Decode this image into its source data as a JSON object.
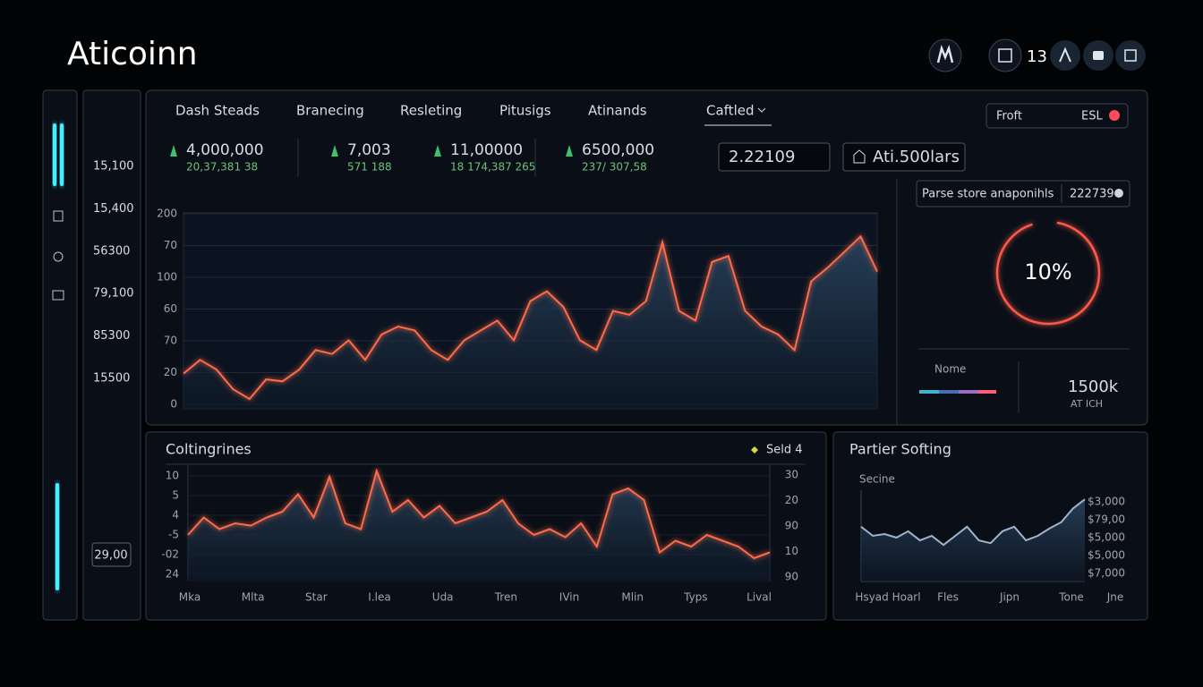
{
  "header": {
    "title": "Aticoinn",
    "badge": "13"
  },
  "sidebar": {
    "values": [
      "15,100",
      "15,400",
      "56300",
      "79,100",
      "85300",
      "15500"
    ],
    "footer": "29,00"
  },
  "tabs": [
    "Dash Steads",
    "Branecing",
    "Resleting",
    "Pitusigs",
    "Atinands",
    "Caftled"
  ],
  "filter": {
    "label": "Froft",
    "value": "ESL"
  },
  "stats": [
    {
      "value": "4,000,000",
      "sub": "20,37,381 38"
    },
    {
      "value": "7,003",
      "sub": "571 188"
    },
    {
      "value": "11,00000",
      "sub": "18 174,387 265"
    },
    {
      "value": "6500,000",
      "sub": "237/ 307,58"
    }
  ],
  "input": "2.22109",
  "button": "Ati.500lars",
  "main_chart": {
    "type": "line",
    "y_labels": [
      "200",
      "70",
      "100",
      "60",
      "70",
      "20",
      "0"
    ],
    "values": [
      18,
      25,
      20,
      10,
      5,
      15,
      14,
      20,
      30,
      28,
      35,
      25,
      38,
      42,
      40,
      30,
      25,
      35,
      40,
      45,
      35,
      55,
      60,
      52,
      35,
      30,
      50,
      48,
      55,
      85,
      50,
      45,
      75,
      78,
      50,
      42,
      38,
      30,
      65,
      72,
      80,
      88,
      70
    ],
    "ylim": [
      0,
      100
    ],
    "color": "#ff6a4a"
  },
  "side_panel": {
    "field": "Parse store anaponihls",
    "field_value": "222739",
    "ring_label": "10%",
    "legend": "Nome",
    "total": "1500k",
    "total_sub": "AT ICH"
  },
  "lower_chart": {
    "type": "line",
    "title": "Coltingrines",
    "legend": "Seld 4",
    "y_labels": [
      "10",
      "5",
      "4",
      "-5",
      "-02",
      "24"
    ],
    "y2_labels": [
      "30",
      "20",
      "90",
      "10",
      "90"
    ],
    "x_labels": [
      "Mka",
      "Mlta",
      "Star",
      "I.lea",
      "Uda",
      "Tren",
      "IVin",
      "Mlin",
      "Typs",
      "Lival"
    ],
    "values": [
      40,
      55,
      45,
      50,
      48,
      55,
      60,
      75,
      55,
      90,
      50,
      45,
      95,
      60,
      70,
      55,
      65,
      50,
      55,
      60,
      70,
      50,
      40,
      45,
      38,
      50,
      30,
      75,
      80,
      70,
      25,
      35,
      30,
      40,
      35,
      30,
      20,
      25
    ],
    "ylim": [
      0,
      100
    ],
    "color": "#ff6a4a"
  },
  "right_chart": {
    "type": "line",
    "title": "Partier Softing",
    "subtitle": "Secine",
    "y_labels": [
      "$3,000",
      "$79,00",
      "$5,000",
      "$5,000",
      "$7,000"
    ],
    "x_labels": [
      "Hsyad Hoarl",
      "Fles",
      "Jipn",
      "Tone",
      "Jne"
    ],
    "values": [
      60,
      50,
      52,
      48,
      55,
      45,
      50,
      40,
      50,
      60,
      45,
      42,
      55,
      60,
      45,
      50,
      58,
      65,
      80,
      90
    ],
    "ylim": [
      0,
      100
    ],
    "color": "#9fb4cc"
  }
}
